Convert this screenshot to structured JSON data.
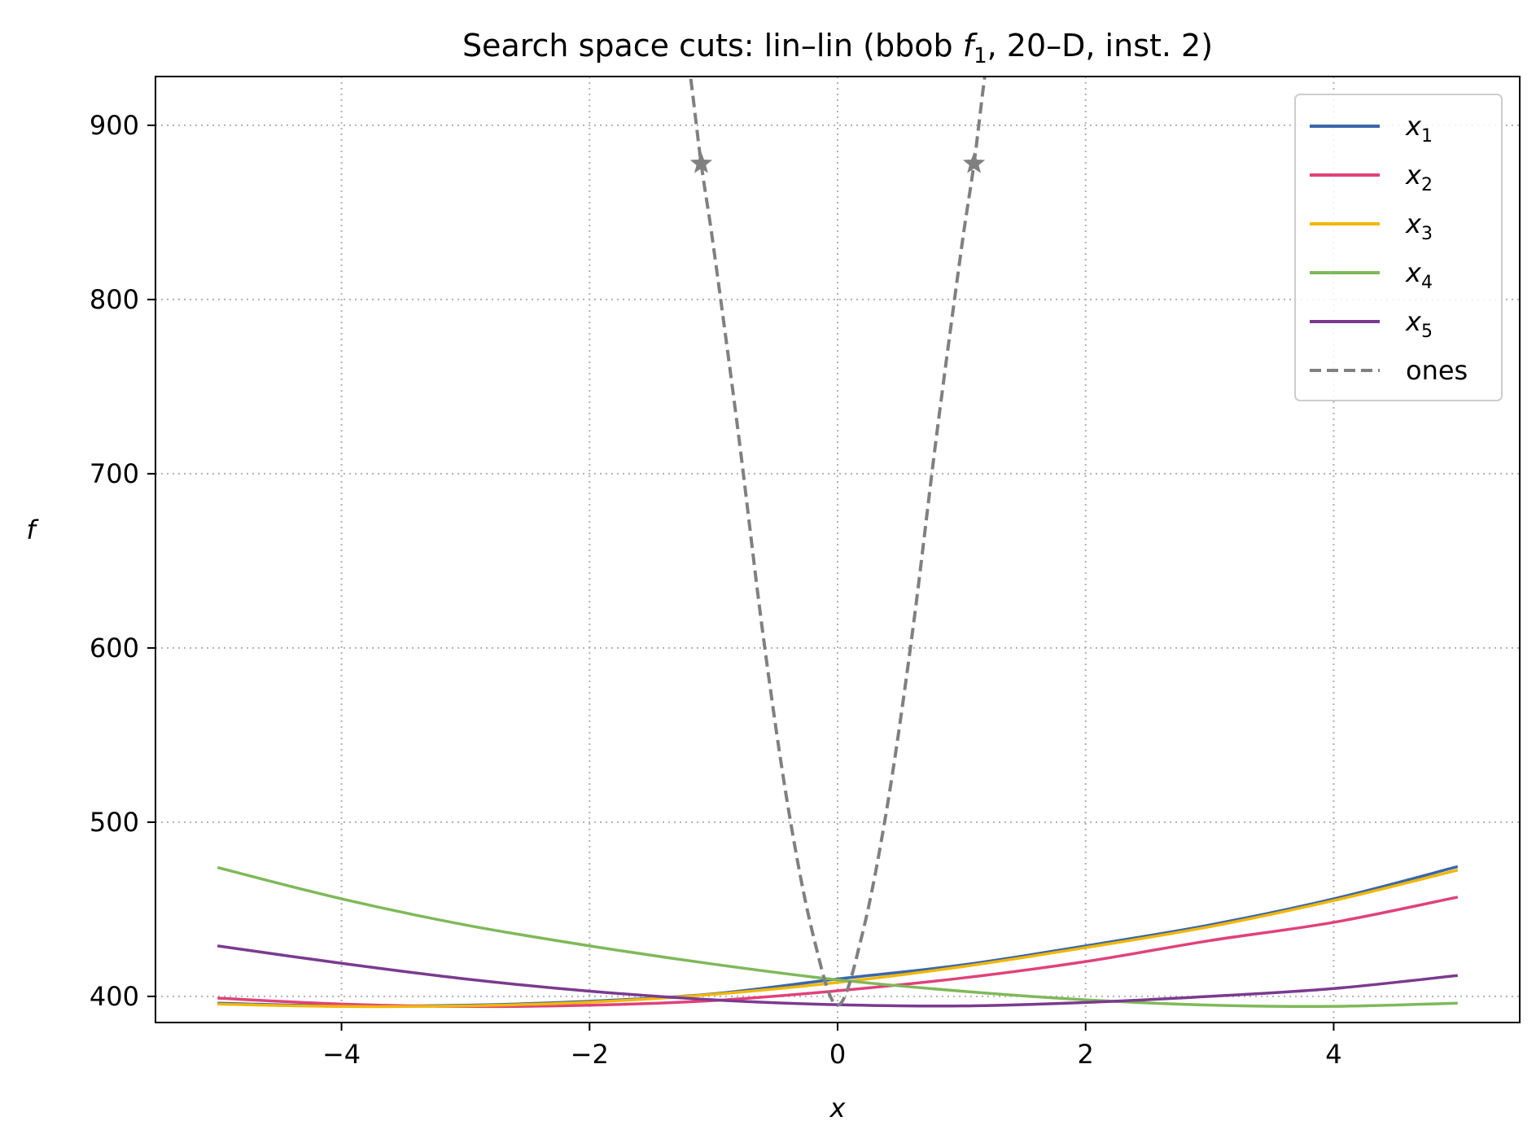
{
  "chart_data": {
    "type": "line",
    "title_parts": {
      "before": "Search space cuts: lin–lin (bbob ",
      "fname": "f",
      "fsub": "1",
      "after": ", 20–D, inst. 2)"
    },
    "xlabel": "x",
    "ylabel": "f",
    "xlim": [
      -5.5,
      5.5
    ],
    "ylim": [
      385,
      928
    ],
    "x_ticks": [
      -4,
      -2,
      0,
      2,
      4
    ],
    "x_tick_labels": [
      "−4",
      "−2",
      "0",
      "2",
      "4"
    ],
    "y_ticks": [
      400,
      500,
      600,
      700,
      800,
      900
    ],
    "y_tick_labels": [
      "400",
      "500",
      "600",
      "700",
      "800",
      "900"
    ],
    "grid": true,
    "legend_position": "top-right",
    "x_range": [
      -5,
      5
    ],
    "series": [
      {
        "name": "x",
        "sub": "1",
        "color": "#3a67a8",
        "dashed": false,
        "x": [
          -5,
          -4,
          -3,
          -2,
          -1,
          0,
          1,
          2,
          3,
          4,
          5
        ],
        "y": [
          396.1,
          394.5,
          394.9,
          397.2,
          401.5,
          410.0,
          418.0,
          429.0,
          441.0,
          456.0,
          474.5
        ]
      },
      {
        "name": "x",
        "sub": "2",
        "color": "#e0427a",
        "dashed": false,
        "x": [
          -5,
          -4,
          -3,
          -2,
          -1,
          0,
          1,
          2,
          3,
          4,
          5
        ],
        "y": [
          399.0,
          395.6,
          394.2,
          394.9,
          397.6,
          403.2,
          410.5,
          420.0,
          432.0,
          442.5,
          457.0
        ]
      },
      {
        "name": "x",
        "sub": "3",
        "color": "#f2b705",
        "dashed": false,
        "x": [
          -5,
          -4,
          -3,
          -2,
          -1,
          0,
          1,
          2,
          3,
          4,
          5
        ],
        "y": [
          395.6,
          394.2,
          394.6,
          396.7,
          401.2,
          408.0,
          417.0,
          428.0,
          440.0,
          455.0,
          472.5
        ]
      },
      {
        "name": "x",
        "sub": "4",
        "color": "#7fb95a",
        "dashed": false,
        "x": [
          -5,
          -4,
          -3,
          -2,
          -1,
          0,
          1,
          2,
          3,
          4,
          5
        ],
        "y": [
          474.0,
          456.0,
          441.0,
          429.0,
          418.5,
          409.5,
          403.0,
          398.0,
          395.0,
          394.3,
          396.1
        ]
      },
      {
        "name": "x",
        "sub": "5",
        "color": "#7b3a8f",
        "dashed": false,
        "x": [
          -5,
          -4,
          -3,
          -2,
          -1,
          0,
          1,
          2,
          3,
          4,
          5
        ],
        "y": [
          429.0,
          419.0,
          410.0,
          403.0,
          398.0,
          395.2,
          394.5,
          396.5,
          400.0,
          404.5,
          412.0
        ]
      },
      {
        "name": "ones",
        "color": "#808080",
        "dashed": true,
        "x": [
          -1.3,
          -1.2,
          -1.1,
          -1.0,
          -0.8,
          -0.6,
          -0.4,
          -0.2,
          0,
          0.2,
          0.4,
          0.6,
          0.8,
          1.0,
          1.1,
          1.2,
          1.3
        ],
        "y": [
          975.0,
          935.0,
          878.0,
          830.0,
          723.0,
          607.0,
          509.0,
          436.0,
          395.0,
          436.0,
          509.0,
          607.0,
          723.0,
          830.0,
          878.0,
          935.0,
          975.0
        ]
      }
    ],
    "markers": [
      {
        "series": "ones",
        "symbol": "star",
        "x": -1.1,
        "y": 878
      },
      {
        "series": "ones",
        "symbol": "star",
        "x": 1.1,
        "y": 878
      }
    ]
  }
}
